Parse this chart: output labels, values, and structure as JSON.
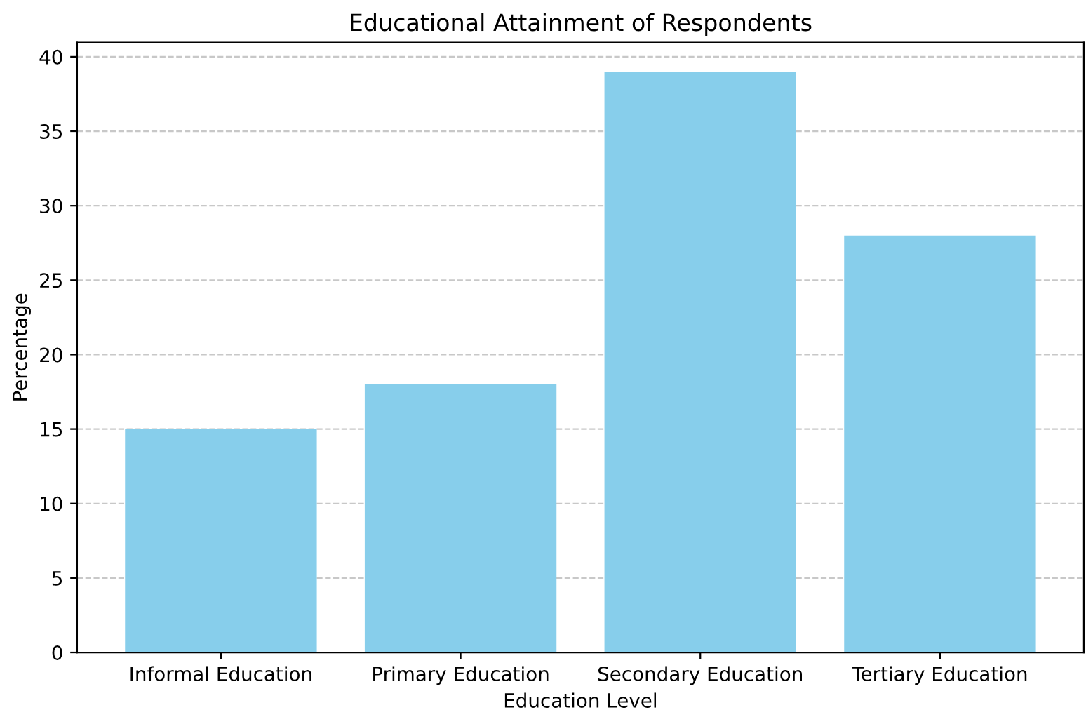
{
  "chart_data": {
    "type": "bar",
    "title": "Educational Attainment of Respondents",
    "xlabel": "Education Level",
    "ylabel": "Percentage",
    "categories": [
      "Informal Education",
      "Primary Education",
      "Secondary Education",
      "Tertiary Education"
    ],
    "values": [
      15,
      18,
      39,
      28
    ],
    "color": "#87ceeb",
    "ylim": [
      0,
      40.95
    ],
    "yticks": [
      0,
      5,
      10,
      15,
      20,
      25,
      30,
      35,
      40
    ],
    "grid": "y"
  }
}
